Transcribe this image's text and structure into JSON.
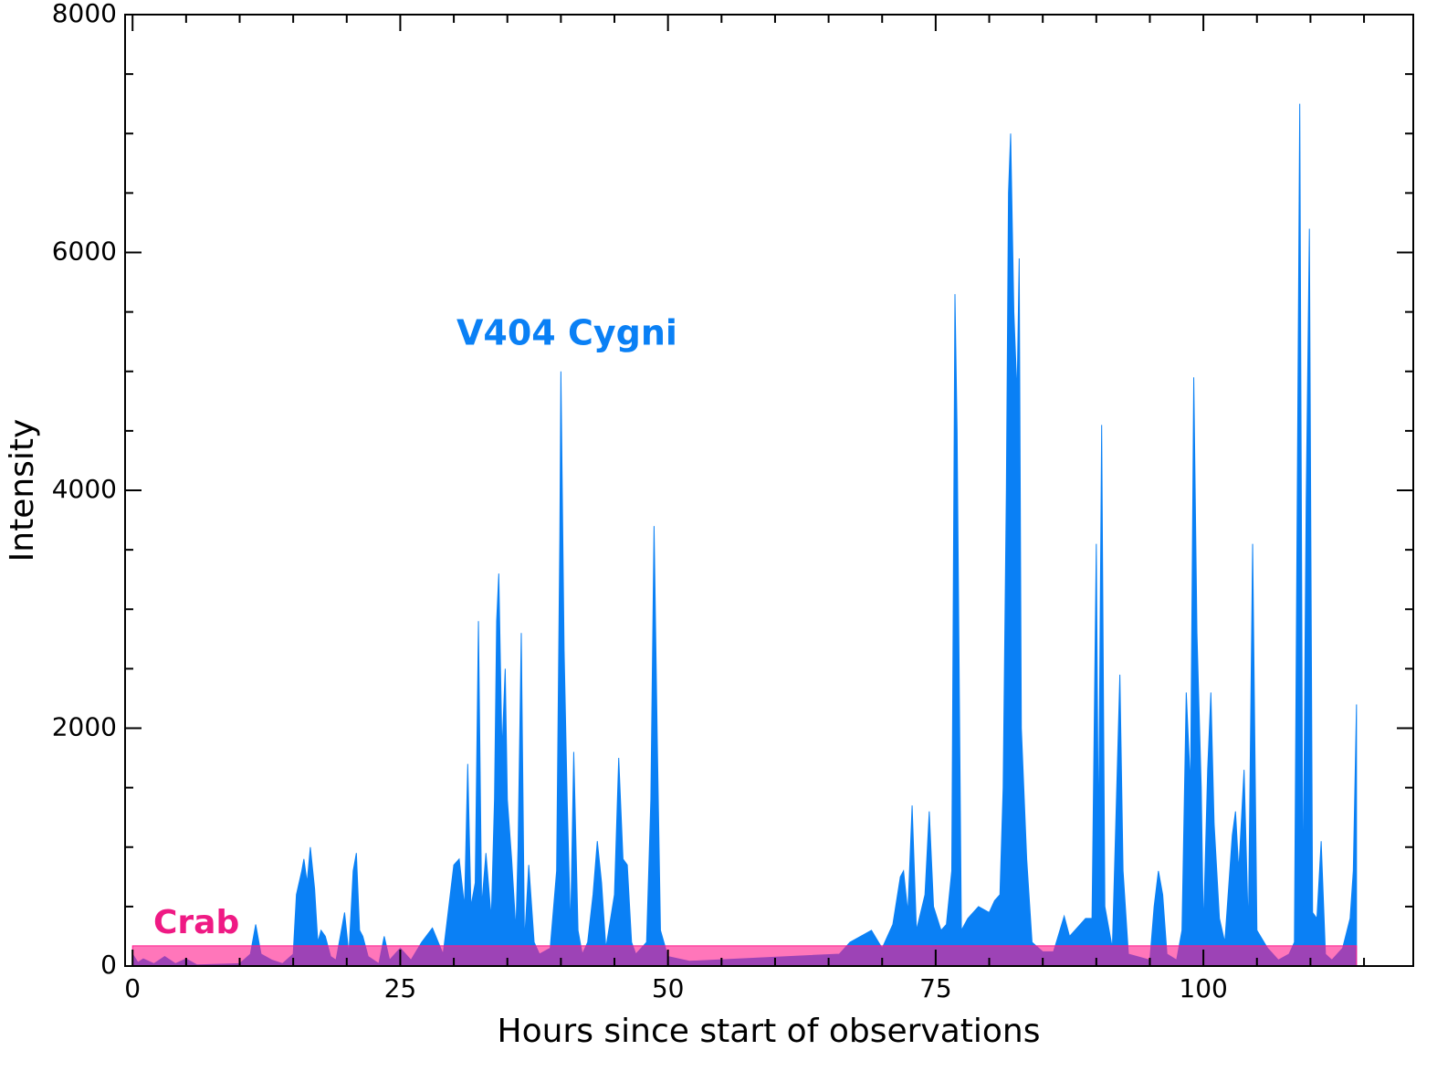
{
  "chart_data": {
    "type": "area",
    "xlabel": "Hours since start of observations",
    "ylabel": "Intensity",
    "xlim": [
      -0.7,
      119.6
    ],
    "ylim": [
      0,
      8000
    ],
    "xticks": [
      0,
      25,
      50,
      75,
      100
    ],
    "yticks": [
      0,
      2000,
      4000,
      6000,
      8000
    ],
    "xminorticks": [
      5,
      10,
      15,
      20,
      30,
      35,
      40,
      45,
      55,
      60,
      65,
      70,
      80,
      85,
      90,
      95,
      105,
      110,
      115
    ],
    "yminorticks": [
      500,
      1000,
      1500,
      2500,
      3000,
      3500,
      4500,
      5000,
      5500,
      6500,
      7000,
      7500
    ],
    "series": [
      {
        "name": "V404 Cygni",
        "color": "#0a80f5",
        "x": [
          0,
          0.5,
          1,
          2,
          3,
          4,
          5,
          6,
          10,
          11,
          11.5,
          12,
          13,
          14,
          15,
          15.3,
          15.8,
          16,
          16.3,
          16.6,
          17,
          17.3,
          17.6,
          18,
          18.5,
          19,
          19.8,
          20.2,
          20.6,
          20.9,
          21.2,
          21.5,
          22,
          23,
          23.5,
          24,
          25,
          26,
          27,
          28,
          29,
          30,
          30.5,
          31,
          31.3,
          31.6,
          32,
          32.3,
          32.6,
          33,
          33.5,
          33.8,
          34,
          34.2,
          34.5,
          34.8,
          35,
          35.4,
          35.8,
          36,
          36.3,
          36.6,
          37,
          37.5,
          38,
          39,
          39.6,
          39.9,
          40,
          40.3,
          40.6,
          40.9,
          41.2,
          41.6,
          42,
          42.5,
          43,
          43.4,
          43.8,
          44.2,
          45,
          45.4,
          45.8,
          46.2,
          46.6,
          47,
          48,
          48.4,
          48.7,
          49,
          49.3,
          50,
          52,
          66,
          67,
          68,
          69,
          70,
          71,
          71.7,
          72,
          72.4,
          72.8,
          73.2,
          74,
          74.4,
          74.8,
          75.5,
          76,
          76.5,
          76.8,
          77,
          77.4,
          78,
          79,
          80,
          80.5,
          81,
          81.3,
          81.6,
          81.8,
          82,
          82.3,
          82.6,
          82.8,
          83,
          83.5,
          84,
          85,
          86,
          87,
          87.5,
          88,
          89,
          89.6,
          90,
          90.2,
          90.5,
          90.8,
          91.5,
          92.2,
          92.5,
          93,
          95,
          95.4,
          95.8,
          96.2,
          96.6,
          97.5,
          98,
          98.4,
          98.8,
          99.1,
          99.4,
          99.8,
          100,
          100.4,
          100.7,
          101,
          101.5,
          102,
          102.7,
          103,
          103.3,
          103.8,
          104.2,
          104.6,
          105,
          106,
          107,
          108,
          108.5,
          109,
          109.3,
          109.6,
          109.9,
          110.2,
          110.6,
          111,
          111.4,
          112,
          113,
          113.7,
          114,
          114.3
        ],
        "values": [
          100,
          30,
          60,
          20,
          80,
          20,
          60,
          10,
          20,
          100,
          350,
          100,
          50,
          20,
          100,
          600,
          800,
          900,
          700,
          1000,
          650,
          200,
          300,
          250,
          80,
          50,
          450,
          100,
          800,
          950,
          300,
          250,
          80,
          20,
          250,
          50,
          150,
          50,
          200,
          320,
          100,
          850,
          900,
          500,
          1700,
          500,
          700,
          2900,
          500,
          950,
          400,
          1400,
          2900,
          3300,
          1800,
          2500,
          1400,
          900,
          300,
          1000,
          2800,
          200,
          850,
          200,
          100,
          150,
          800,
          3600,
          5000,
          2650,
          1350,
          300,
          1800,
          300,
          100,
          200,
          600,
          1050,
          700,
          150,
          600,
          1750,
          900,
          850,
          200,
          100,
          200,
          1400,
          3700,
          1900,
          300,
          80,
          40,
          100,
          200,
          250,
          300,
          150,
          350,
          750,
          800,
          450,
          1350,
          300,
          600,
          1300,
          500,
          300,
          350,
          800,
          5650,
          4500,
          300,
          400,
          500,
          450,
          550,
          600,
          1500,
          4000,
          6500,
          7000,
          5500,
          4800,
          5950,
          2000,
          900,
          200,
          120,
          120,
          420,
          250,
          300,
          400,
          400,
          3550,
          1000,
          4550,
          500,
          150,
          2450,
          800,
          100,
          50,
          500,
          800,
          600,
          100,
          50,
          300,
          2300,
          1500,
          4950,
          2800,
          1500,
          300,
          1650,
          2300,
          1200,
          400,
          200,
          1100,
          1300,
          800,
          1650,
          300,
          3550,
          300,
          150,
          50,
          100,
          200,
          7250,
          500,
          3900,
          6200,
          450,
          400,
          1050,
          100,
          50,
          150,
          400,
          800,
          2200
        ]
      },
      {
        "name": "Crab",
        "color": "#ff1a8c",
        "x": [
          0,
          114.3
        ],
        "values": [
          170,
          170
        ]
      }
    ]
  }
}
